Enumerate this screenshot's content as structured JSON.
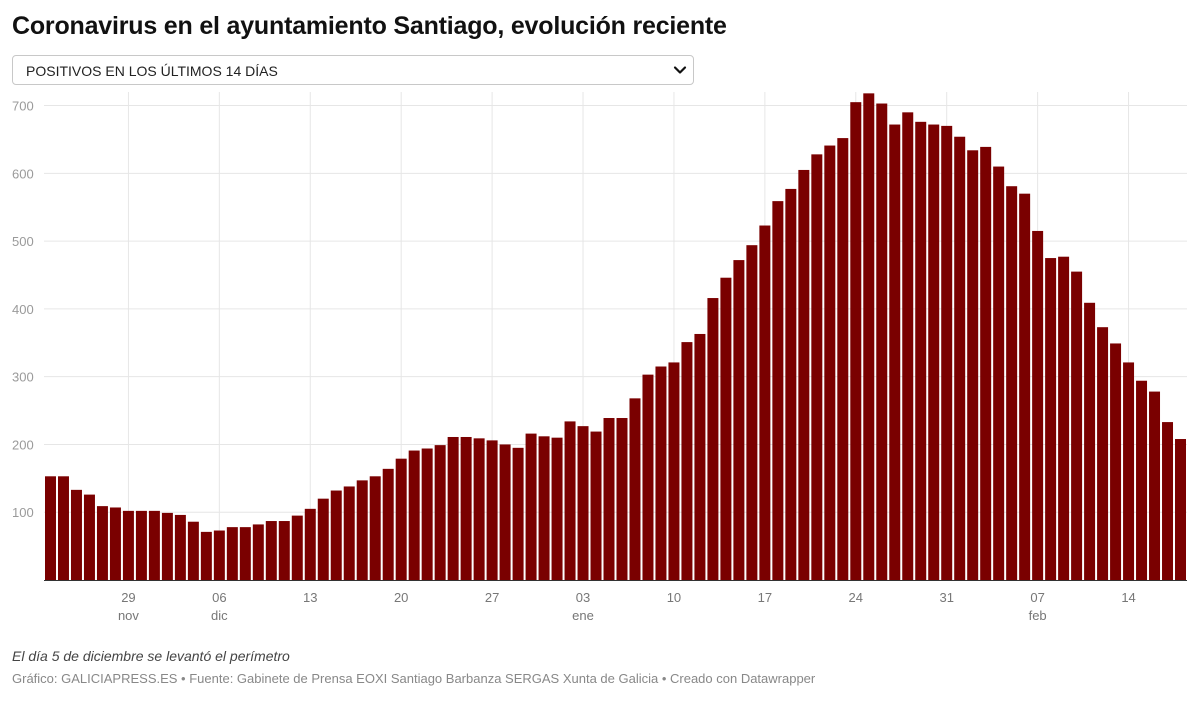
{
  "title": "Coronavirus en el ayuntamiento Santiago, evolución reciente",
  "selector": {
    "selected": "POSITIVOS EN LOS ÚLTIMOS 14 DÍAS",
    "icon": "chevron-down-icon"
  },
  "chart_data": {
    "type": "bar",
    "bar_color": "#7a0000",
    "grid": true,
    "ylim": [
      0,
      720
    ],
    "yticks": [
      100,
      200,
      300,
      400,
      500,
      600,
      700
    ],
    "start_date": "2020-11-23",
    "values": [
      153,
      153,
      133,
      126,
      109,
      107,
      102,
      102,
      102,
      99,
      96,
      86,
      71,
      73,
      78,
      78,
      82,
      87,
      87,
      95,
      105,
      120,
      132,
      138,
      147,
      153,
      164,
      179,
      191,
      194,
      199,
      211,
      211,
      209,
      206,
      200,
      195,
      216,
      212,
      210,
      234,
      227,
      219,
      239,
      239,
      268,
      303,
      315,
      321,
      351,
      363,
      416,
      446,
      472,
      494,
      523,
      559,
      577,
      605,
      628,
      641,
      652,
      705,
      718,
      703,
      672,
      690,
      676,
      672,
      670,
      654,
      634,
      639,
      610,
      581,
      570,
      515,
      475,
      477,
      455,
      409,
      373,
      349,
      321,
      294,
      278,
      233,
      208
    ],
    "xticks": [
      {
        "day": "29",
        "month": "nov"
      },
      {
        "day": "06",
        "month": "dic"
      },
      {
        "day": "13",
        "month": ""
      },
      {
        "day": "20",
        "month": ""
      },
      {
        "day": "27",
        "month": ""
      },
      {
        "day": "03",
        "month": "ene"
      },
      {
        "day": "10",
        "month": ""
      },
      {
        "day": "17",
        "month": ""
      },
      {
        "day": "24",
        "month": ""
      },
      {
        "day": "31",
        "month": ""
      },
      {
        "day": "07",
        "month": "feb"
      },
      {
        "day": "14",
        "month": ""
      }
    ]
  },
  "note": "El día 5 de diciembre se levantó el perímetro",
  "source": "Gráfico: GALICIAPRESS.ES • Fuente: Gabinete de Prensa EOXI Santiago Barbanza SERGAS Xunta de Galicia • Creado con Datawrapper"
}
